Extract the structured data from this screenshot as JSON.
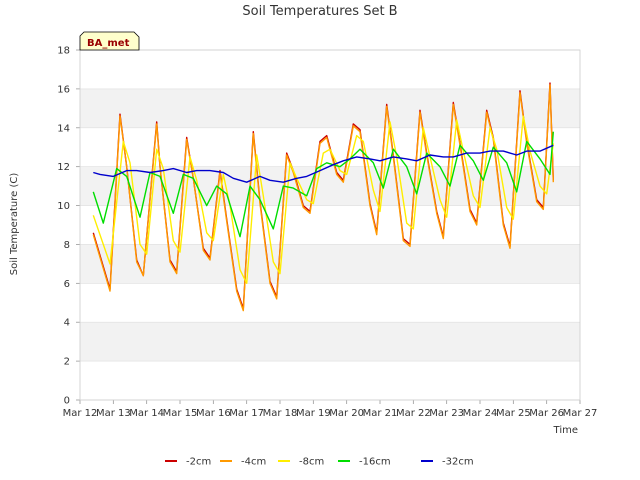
{
  "chart_data": {
    "type": "line",
    "title": "Soil Temperatures Set B",
    "xlabel": "Time",
    "ylabel": "Soil Temperature (C)",
    "ylim": [
      0,
      18
    ],
    "xlim": [
      "Mar 12",
      "Mar 27"
    ],
    "yticks": [
      0,
      2,
      4,
      6,
      8,
      10,
      12,
      14,
      16,
      18
    ],
    "xticks": [
      "Mar 12",
      "Mar 13",
      "Mar 14",
      "Mar 15",
      "Mar 16",
      "Mar 17",
      "Mar 18",
      "Mar 19",
      "Mar 20",
      "Mar 21",
      "Mar 22",
      "Mar 23",
      "Mar 24",
      "Mar 25",
      "Mar 26",
      "Mar 27"
    ],
    "grid": true,
    "legend_position": "bottom",
    "badge": "BA_met",
    "colors": {
      "badge_bg": "#ffffcc",
      "badge_text": "#990000",
      "band": "#f2f2f2",
      "grid": "#dddddd"
    },
    "series": [
      {
        "name": "-2cm",
        "color": "#cc0000",
        "x": [
          12.4,
          12.9,
          13.2,
          13.4,
          13.7,
          13.9,
          14.3,
          14.4,
          14.7,
          14.9,
          15.2,
          15.4,
          15.7,
          15.9,
          16.2,
          16.4,
          16.7,
          16.9,
          17.2,
          17.4,
          17.7,
          17.9,
          18.2,
          18.4,
          18.7,
          18.9,
          19.2,
          19.4,
          19.7,
          19.9,
          20.2,
          20.4,
          20.7,
          20.9,
          21.2,
          21.4,
          21.7,
          21.9,
          22.2,
          22.4,
          22.7,
          22.9,
          23.2,
          23.4,
          23.7,
          23.9,
          24.2,
          24.4,
          24.7,
          24.9,
          25.2,
          25.4,
          25.7,
          25.9,
          26.1,
          26.2
        ],
        "y": [
          8.6,
          5.7,
          14.7,
          12.0,
          7.2,
          6.4,
          14.3,
          12.0,
          7.2,
          6.6,
          13.5,
          11.4,
          7.8,
          7.3,
          11.8,
          9.3,
          5.7,
          4.7,
          13.8,
          10.2,
          6.1,
          5.3,
          12.7,
          11.8,
          10.0,
          9.7,
          13.3,
          13.6,
          11.7,
          11.3,
          14.2,
          13.9,
          10.1,
          8.6,
          15.2,
          12.6,
          8.3,
          8.0,
          14.9,
          12.7,
          9.7,
          8.4,
          15.3,
          13.2,
          9.8,
          9.1,
          14.9,
          13.5,
          9.1,
          7.9,
          15.9,
          13.3,
          10.3,
          9.9,
          16.3,
          11.3
        ]
      },
      {
        "name": "-4cm",
        "color": "#ff9900",
        "x": [
          12.4,
          12.9,
          13.2,
          13.4,
          13.7,
          13.9,
          14.3,
          14.4,
          14.7,
          14.9,
          15.2,
          15.4,
          15.7,
          15.9,
          16.2,
          16.4,
          16.7,
          16.9,
          17.2,
          17.4,
          17.7,
          17.9,
          18.2,
          18.4,
          18.7,
          18.9,
          19.2,
          19.4,
          19.7,
          19.9,
          20.2,
          20.4,
          20.7,
          20.9,
          21.2,
          21.4,
          21.7,
          21.9,
          22.2,
          22.4,
          22.7,
          22.9,
          23.2,
          23.4,
          23.7,
          23.9,
          24.2,
          24.4,
          24.7,
          24.9,
          25.2,
          25.4,
          25.7,
          25.9,
          26.1,
          26.2
        ],
        "y": [
          8.5,
          5.6,
          14.6,
          12.0,
          7.1,
          6.4,
          14.2,
          12.0,
          7.1,
          6.5,
          13.4,
          11.4,
          7.7,
          7.2,
          11.7,
          9.2,
          5.6,
          4.6,
          13.7,
          10.1,
          6.0,
          5.2,
          12.6,
          11.7,
          9.9,
          9.6,
          13.2,
          13.5,
          11.6,
          11.2,
          14.1,
          13.8,
          10.0,
          8.5,
          15.1,
          12.5,
          8.2,
          7.9,
          14.8,
          12.6,
          9.6,
          8.3,
          15.2,
          13.1,
          9.7,
          9.0,
          14.8,
          13.4,
          9.0,
          7.8,
          15.8,
          13.2,
          10.2,
          9.8,
          16.2,
          11.2
        ]
      },
      {
        "name": "-8cm",
        "color": "#ffee00",
        "x": [
          12.4,
          12.9,
          13.3,
          13.5,
          13.8,
          14.0,
          14.3,
          14.5,
          14.8,
          15.0,
          15.3,
          15.5,
          15.8,
          16.0,
          16.3,
          16.5,
          16.8,
          17.0,
          17.3,
          17.5,
          17.8,
          18.0,
          18.3,
          18.5,
          18.8,
          19.0,
          19.3,
          19.5,
          19.8,
          20.0,
          20.3,
          20.5,
          20.8,
          21.0,
          21.3,
          21.5,
          21.8,
          22.0,
          22.3,
          22.5,
          22.8,
          23.0,
          23.3,
          23.5,
          23.8,
          24.0,
          24.3,
          24.5,
          24.8,
          25.0,
          25.3,
          25.5,
          25.8,
          26.0,
          26.2
        ],
        "y": [
          9.5,
          7.0,
          13.3,
          12.2,
          8.0,
          7.5,
          12.9,
          11.9,
          8.2,
          7.6,
          12.5,
          11.3,
          8.6,
          8.2,
          11.6,
          10.0,
          6.7,
          6.0,
          12.6,
          10.5,
          7.1,
          6.5,
          12.2,
          11.4,
          10.3,
          10.1,
          12.7,
          12.9,
          11.8,
          11.6,
          13.6,
          13.3,
          10.8,
          9.7,
          14.3,
          12.5,
          9.1,
          8.8,
          14.0,
          12.5,
          10.3,
          9.4,
          14.4,
          12.8,
          10.5,
          9.9,
          14.0,
          12.9,
          9.9,
          9.3,
          14.6,
          12.8,
          11.0,
          10.6,
          13.2
        ]
      },
      {
        "name": "-16cm",
        "color": "#00dd00",
        "x": [
          12.4,
          12.7,
          13.1,
          13.4,
          13.8,
          14.1,
          14.4,
          14.8,
          15.1,
          15.4,
          15.8,
          16.1,
          16.4,
          16.8,
          17.1,
          17.4,
          17.8,
          18.1,
          18.4,
          18.8,
          19.1,
          19.4,
          19.8,
          20.1,
          20.4,
          20.8,
          21.1,
          21.4,
          21.8,
          22.1,
          22.4,
          22.8,
          23.1,
          23.4,
          23.8,
          24.1,
          24.4,
          24.8,
          25.1,
          25.4,
          25.8,
          26.1,
          26.2
        ],
        "y": [
          10.7,
          9.1,
          11.9,
          11.5,
          9.4,
          11.7,
          11.5,
          9.6,
          11.6,
          11.4,
          10.0,
          11.0,
          10.6,
          8.4,
          11.0,
          10.3,
          8.8,
          11.0,
          10.9,
          10.5,
          11.9,
          12.2,
          12.0,
          12.4,
          12.9,
          12.2,
          10.9,
          12.9,
          12.0,
          10.6,
          12.7,
          12.0,
          11.0,
          13.1,
          12.3,
          11.3,
          13.0,
          12.2,
          10.7,
          13.3,
          12.4,
          11.6,
          13.8
        ]
      },
      {
        "name": "-32cm",
        "color": "#0000cc",
        "x": [
          12.4,
          12.6,
          13.0,
          13.4,
          13.7,
          14.1,
          14.5,
          14.8,
          15.2,
          15.5,
          15.9,
          16.3,
          16.6,
          17.0,
          17.4,
          17.7,
          18.1,
          18.5,
          18.8,
          19.2,
          19.6,
          19.9,
          20.3,
          20.7,
          21.0,
          21.4,
          21.8,
          22.1,
          22.5,
          22.9,
          23.2,
          23.6,
          24.0,
          24.3,
          24.7,
          25.1,
          25.4,
          25.8,
          26.2
        ],
        "y": [
          11.7,
          11.6,
          11.5,
          11.8,
          11.8,
          11.7,
          11.8,
          11.9,
          11.7,
          11.8,
          11.8,
          11.7,
          11.4,
          11.2,
          11.5,
          11.3,
          11.2,
          11.4,
          11.5,
          11.8,
          12.1,
          12.3,
          12.5,
          12.4,
          12.3,
          12.5,
          12.4,
          12.3,
          12.6,
          12.5,
          12.5,
          12.7,
          12.7,
          12.8,
          12.8,
          12.6,
          12.8,
          12.8,
          13.1
        ]
      }
    ]
  }
}
